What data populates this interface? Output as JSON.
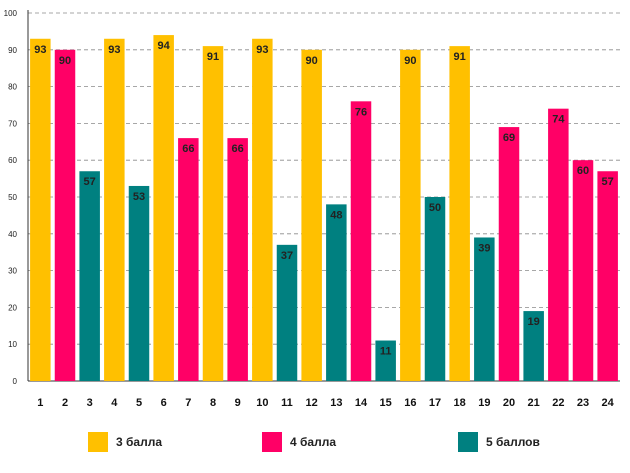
{
  "chart_data": {
    "type": "bar",
    "title": "",
    "xlabel": "",
    "ylabel": "",
    "ylim": [
      0,
      100
    ],
    "yticks": [
      0,
      10,
      20,
      30,
      40,
      50,
      60,
      70,
      80,
      90,
      100
    ],
    "grid": true,
    "legend_position": "bottom",
    "series": [
      {
        "name": "3 балла",
        "color": "#FFC000"
      },
      {
        "name": "4 балла",
        "color": "#FF0066"
      },
      {
        "name": "5 баллов",
        "color": "#008080"
      }
    ],
    "categories": [
      "1",
      "2",
      "3",
      "4",
      "5",
      "6",
      "7",
      "8",
      "9",
      "10",
      "11",
      "12",
      "13",
      "14",
      "15",
      "16",
      "17",
      "18",
      "19",
      "20",
      "21",
      "22",
      "23",
      "24"
    ],
    "values": [
      93,
      90,
      57,
      93,
      53,
      94,
      66,
      91,
      66,
      93,
      37,
      90,
      48,
      76,
      11,
      90,
      50,
      91,
      39,
      69,
      19,
      74,
      60,
      57
    ],
    "bar_series": [
      "3 балла",
      "4 балла",
      "5 баллов",
      "3 балла",
      "5 баллов",
      "3 балла",
      "4 балла",
      "3 балла",
      "4 балла",
      "3 балла",
      "5 баллов",
      "3 балла",
      "5 баллов",
      "4 балла",
      "5 баллов",
      "3 балла",
      "5 баллов",
      "3 балла",
      "5 баллов",
      "4 балла",
      "5 баллов",
      "4 балла",
      "4 балла",
      "4 балла"
    ]
  }
}
